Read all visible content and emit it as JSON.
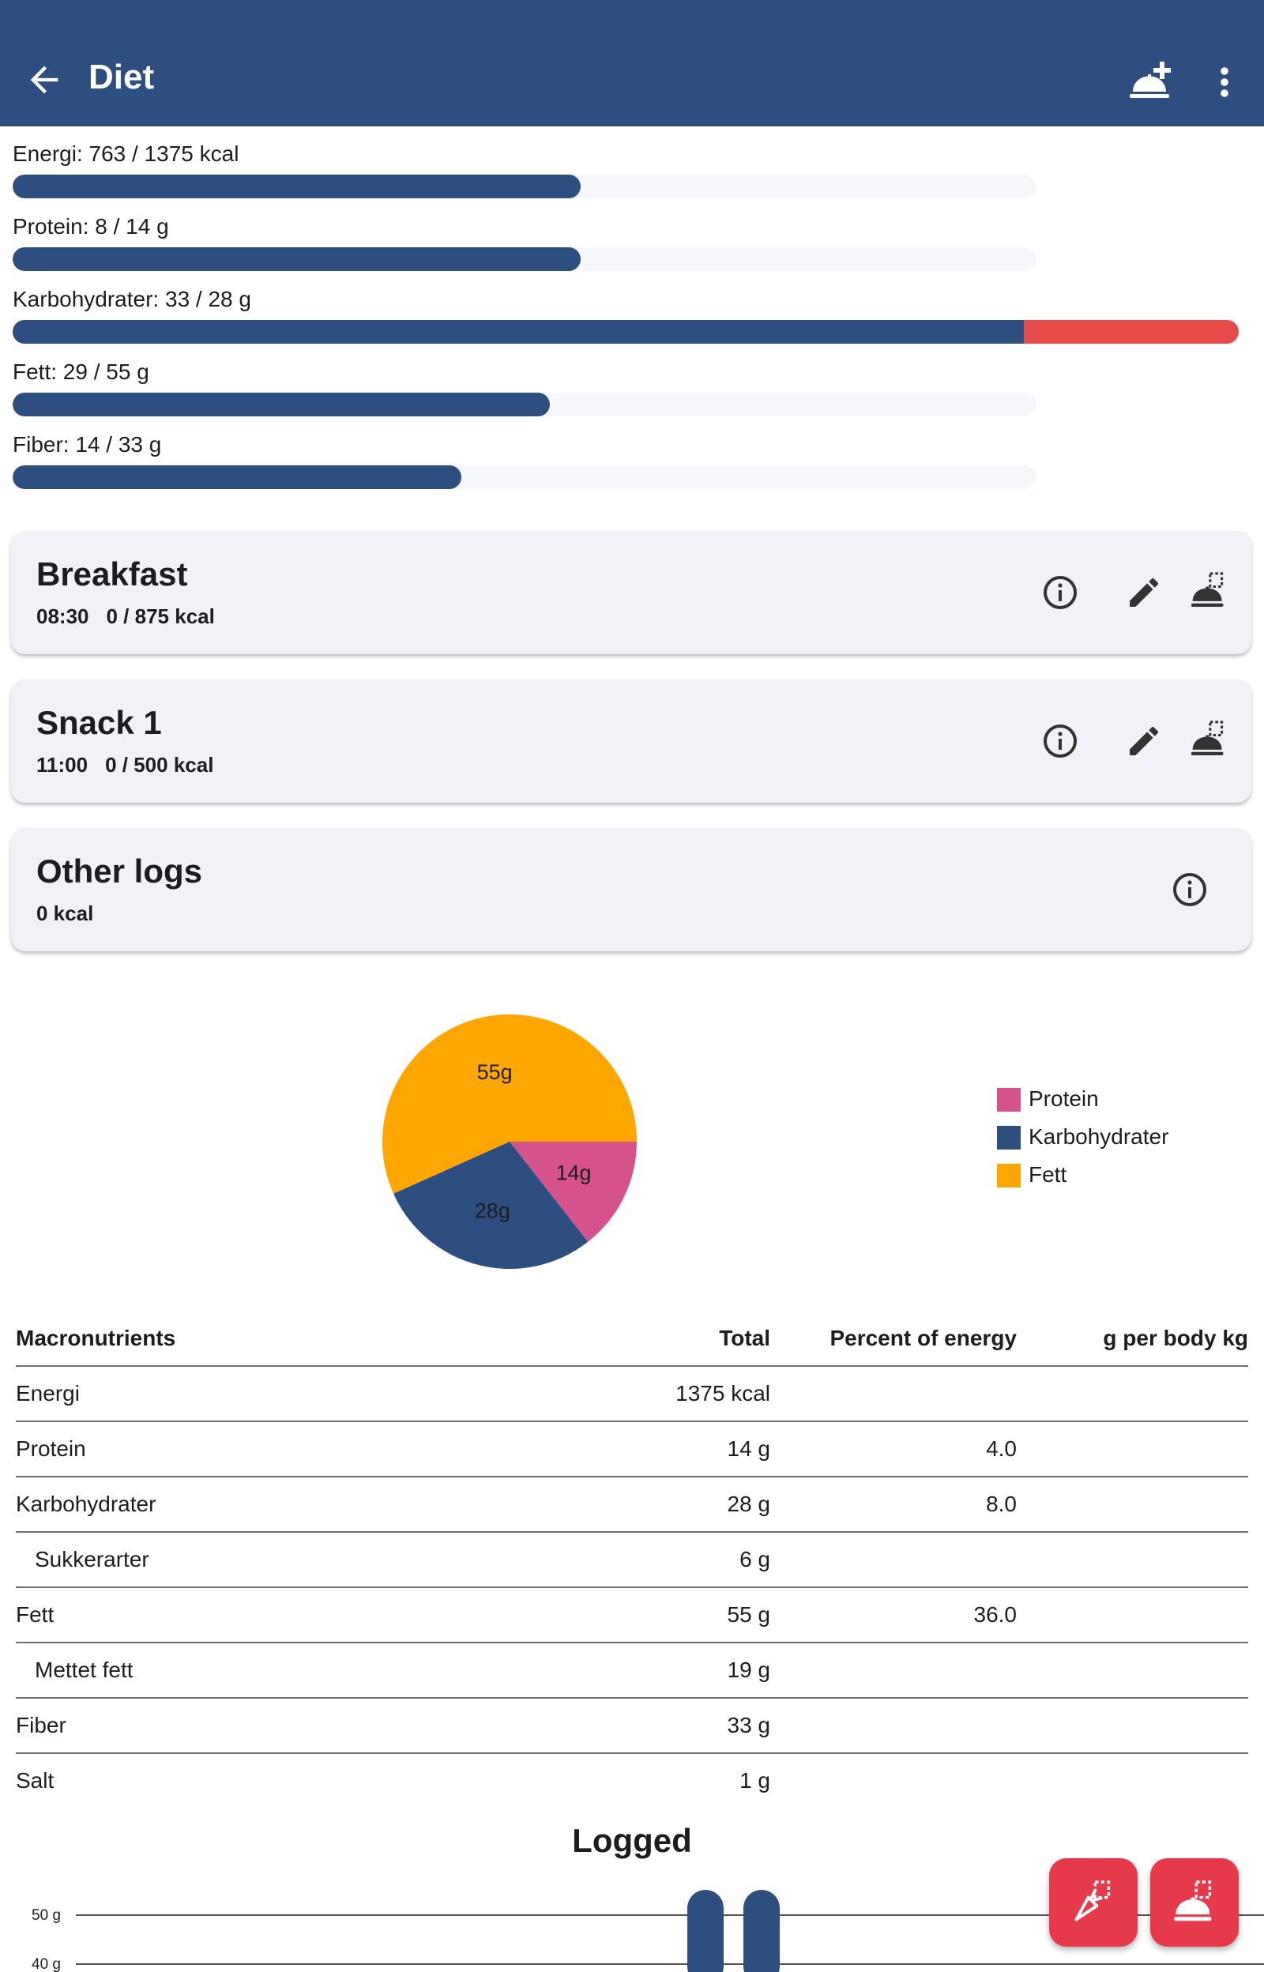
{
  "appbar": {
    "title": "Diet",
    "icons": {
      "back": "arrow-left-icon",
      "add_meal": "add-meal-icon",
      "more": "more-vert-icon"
    }
  },
  "colors": {
    "primary": "#2c4f7f",
    "over": "#e84a4a",
    "protein": "#d5528c",
    "carbs": "#2c4f7f",
    "fat": "#ffa600",
    "fab": "#e63a4a"
  },
  "progress": [
    {
      "label": "Energi: 763 / 1375 kcal",
      "fraction": 0.555
    },
    {
      "label": "Protein: 8 / 14 g",
      "fraction": 0.555
    },
    {
      "label": "Karbohydrater: 33 / 28 g",
      "fraction": 1.0,
      "over_fraction": 0.21
    },
    {
      "label": "Fett: 29 / 55 g",
      "fraction": 0.525
    },
    {
      "label": "Fiber: 14 / 33 g",
      "fraction": 0.438
    }
  ],
  "meals": [
    {
      "title": "Breakfast",
      "time": "08:30",
      "kcal": "0 / 875 kcal"
    },
    {
      "title": "Snack 1",
      "time": "11:00",
      "kcal": "0 / 500 kcal"
    }
  ],
  "other_logs": {
    "title": "Other logs",
    "kcal": "0 kcal"
  },
  "chart_data": {
    "type": "pie",
    "slices": [
      {
        "name": "Protein",
        "value": 14,
        "label": "14g",
        "color": "#d5528c"
      },
      {
        "name": "Karbohydrater",
        "value": 28,
        "label": "28g",
        "color": "#2c4f7f"
      },
      {
        "name": "Fett",
        "value": 55,
        "label": "55g",
        "color": "#ffa600"
      }
    ],
    "legend_position": "right"
  },
  "table": {
    "headers": [
      "Macronutrients",
      "Total",
      "Percent of energy",
      "g per body kg"
    ],
    "rows": [
      {
        "name": "Energi",
        "total": "1375 kcal",
        "pct": "",
        "perkg": "",
        "indent": false
      },
      {
        "name": "Protein",
        "total": "14 g",
        "pct": "4.0",
        "perkg": "",
        "indent": false
      },
      {
        "name": "Karbohydrater",
        "total": "28 g",
        "pct": "8.0",
        "perkg": "",
        "indent": false
      },
      {
        "name": "Sukkerarter",
        "total": "6 g",
        "pct": "",
        "perkg": "",
        "indent": true
      },
      {
        "name": "Fett",
        "total": "55 g",
        "pct": "36.0",
        "perkg": "",
        "indent": false
      },
      {
        "name": "Mettet fett",
        "total": "19 g",
        "pct": "",
        "perkg": "",
        "indent": true
      },
      {
        "name": "Fiber",
        "total": "33 g",
        "pct": "",
        "perkg": "",
        "indent": false
      },
      {
        "name": "Salt",
        "total": "1 g",
        "pct": "",
        "perkg": "",
        "indent": false
      }
    ]
  },
  "logged": {
    "title": "Logged",
    "y_ticks": [
      "50 g",
      "40 g"
    ]
  },
  "fabs": {
    "log_ingredient": "log-ingredient-icon",
    "log_meal": "log-meal-icon"
  }
}
